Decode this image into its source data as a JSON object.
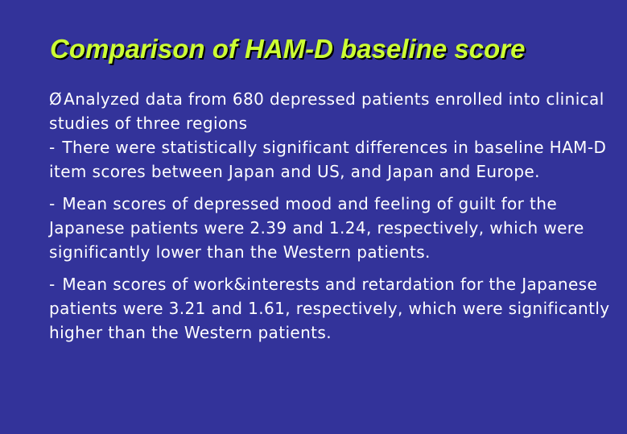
{
  "slide": {
    "title": "Comparison of HAM-D baseline score",
    "bullet_glyph": "Ø",
    "dash_glyph": "-",
    "points": [
      "Analyzed data from 680 depressed patients enrolled into clinical studies of three regions",
      "There were statistically significant differences in baseline HAM-D item scores between Japan and US, and Japan and Europe.",
      "Mean scores of depressed mood and feeling of guilt for the Japanese patients were 2.39 and 1.24, respectively, which were significantly lower than the Western patients.",
      "Mean scores of work&interests and retardation  for the Japanese patients were 3.21 and 1.61, respectively, which were significantly higher than the Western patients."
    ],
    "colors": {
      "background": "#33339a",
      "title": "#ccff33",
      "text": "#ffffff"
    }
  }
}
